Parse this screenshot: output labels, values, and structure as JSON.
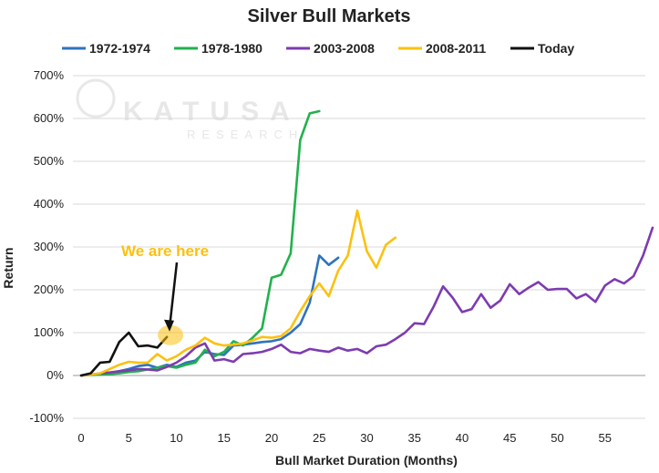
{
  "watermark": {
    "brand": "KATUSA",
    "sub": "RESEARCH"
  },
  "chart_data": {
    "type": "line",
    "title": "Silver Bull Markets",
    "xlabel": "Bull Market Duration (Months)",
    "ylabel": "Return",
    "xlim": [
      0,
      60
    ],
    "ylim": [
      -100,
      700
    ],
    "xticks": [
      0,
      5,
      10,
      15,
      20,
      25,
      30,
      35,
      40,
      45,
      50,
      55
    ],
    "yticks": [
      -100,
      0,
      100,
      200,
      300,
      400,
      500,
      600,
      700
    ],
    "ytick_labels": [
      "-100%",
      "0%",
      "100%",
      "200%",
      "300%",
      "400%",
      "500%",
      "600%",
      "700%"
    ],
    "grid": "horizontal",
    "legend_position": "top",
    "series": [
      {
        "name": "1972-1974",
        "color": "#2f73bd",
        "values": [
          0,
          2,
          4,
          6,
          10,
          15,
          22,
          25,
          18,
          25,
          20,
          30,
          35,
          55,
          50,
          48,
          70,
          72,
          75,
          78,
          80,
          85,
          100,
          120,
          170,
          280,
          258,
          275
        ]
      },
      {
        "name": "1978-1980",
        "color": "#22b14c",
        "values": [
          0,
          1,
          2,
          3,
          5,
          8,
          10,
          14,
          18,
          22,
          18,
          25,
          30,
          60,
          45,
          55,
          80,
          70,
          88,
          110,
          228,
          235,
          285,
          550,
          612,
          617
        ]
      },
      {
        "name": "2003-2008",
        "color": "#7d3bb0",
        "values": [
          0,
          2,
          5,
          7,
          10,
          12,
          15,
          14,
          12,
          20,
          30,
          45,
          65,
          75,
          35,
          38,
          32,
          50,
          52,
          55,
          62,
          72,
          55,
          52,
          62,
          58,
          55,
          65,
          58,
          62,
          52,
          68,
          72,
          85,
          100,
          122,
          120,
          160,
          208,
          182,
          148,
          155,
          190,
          158,
          175,
          213,
          190,
          205,
          218,
          200,
          202,
          202,
          180,
          190,
          172,
          210,
          225,
          215,
          232,
          280,
          345
        ]
      },
      {
        "name": "2008-2011",
        "color": "#fcc10f",
        "values": [
          0,
          2,
          5,
          15,
          25,
          32,
          30,
          30,
          50,
          35,
          45,
          60,
          70,
          88,
          75,
          70,
          72,
          75,
          82,
          90,
          88,
          92,
          110,
          150,
          185,
          215,
          185,
          245,
          280,
          385,
          290,
          252,
          305,
          322
        ]
      },
      {
        "name": "Today",
        "color": "#111111",
        "values": [
          0,
          5,
          30,
          32,
          78,
          100,
          68,
          70,
          65,
          90
        ]
      }
    ],
    "annotations": [
      {
        "text": "We are here",
        "color": "#fcc10f",
        "target": {
          "x": 9,
          "y": 90
        }
      }
    ]
  }
}
